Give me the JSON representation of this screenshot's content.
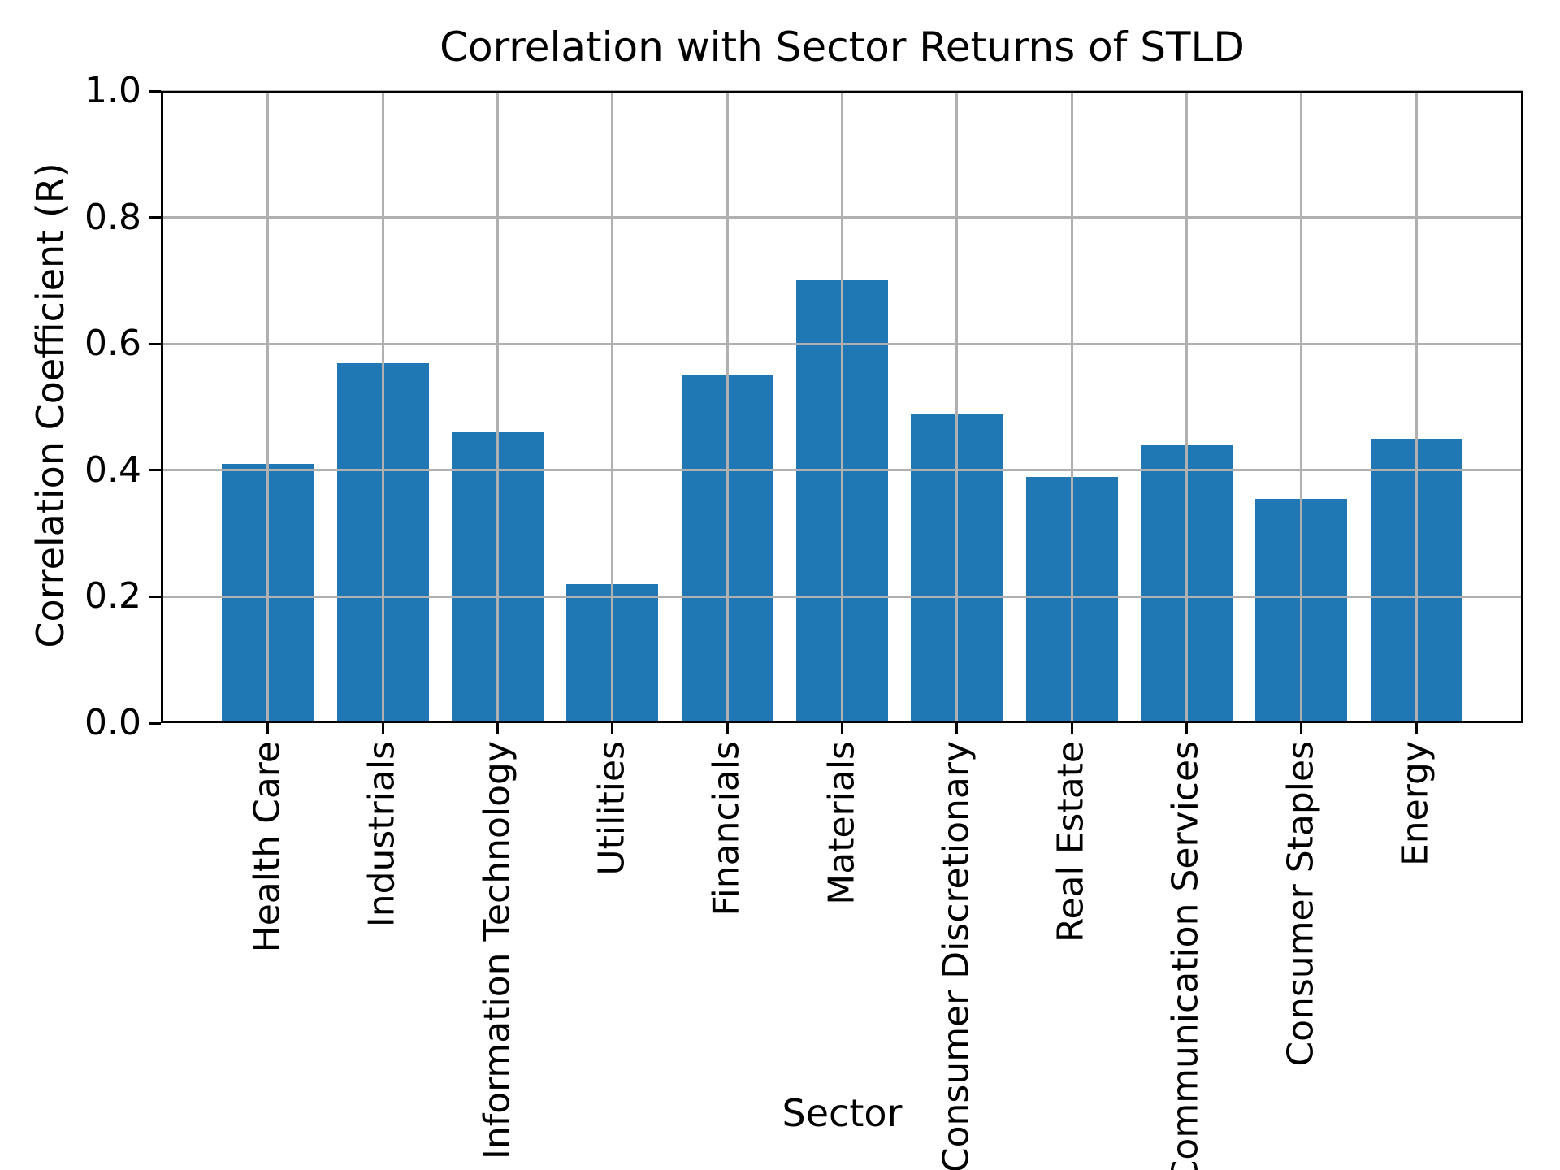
{
  "chart_data": {
    "type": "bar",
    "title": "Correlation with Sector Returns of STLD",
    "xlabel": "Sector",
    "ylabel": "Correlation Coefficient (R)",
    "categories": [
      "Health Care",
      "Industrials",
      "Information Technology",
      "Utilities",
      "Financials",
      "Materials",
      "Consumer Discretionary",
      "Real Estate",
      "Communication Services",
      "Consumer Staples",
      "Energy"
    ],
    "values": [
      0.41,
      0.57,
      0.46,
      0.22,
      0.55,
      0.7,
      0.49,
      0.39,
      0.44,
      0.355,
      0.45
    ],
    "ylim": [
      0.0,
      1.0
    ],
    "yticks": [
      "0.0",
      "0.2",
      "0.4",
      "0.6",
      "0.8",
      "1.0"
    ],
    "grid": true,
    "legend": false,
    "bar_color": "#1f77b4",
    "grid_color": "#b0b0b0",
    "axis_color": "#000000"
  }
}
